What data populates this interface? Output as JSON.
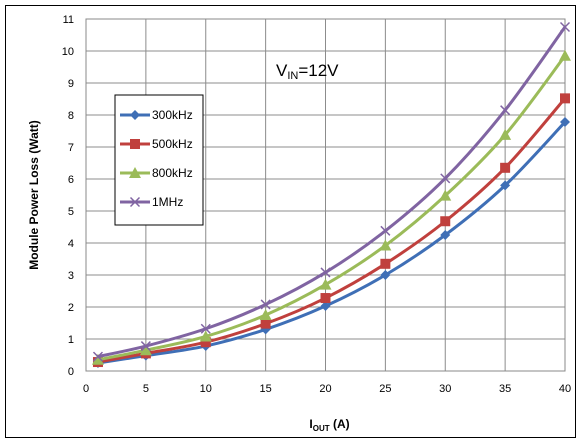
{
  "chart_data": {
    "type": "line",
    "xlabel_main": "I",
    "xlabel_sub": "OUT",
    "xlabel_unit": " (A)",
    "ylabel": "Module Power Loss (Watt)",
    "xlim": [
      0,
      40
    ],
    "ylim": [
      0,
      11
    ],
    "x_ticks": [
      0,
      5,
      10,
      15,
      20,
      25,
      30,
      35,
      40
    ],
    "y_ticks": [
      0,
      1,
      2,
      3,
      4,
      5,
      6,
      7,
      8,
      9,
      10,
      11
    ],
    "grid": true,
    "legend_placement": "left",
    "annotation": {
      "main": "V",
      "sub": "IN",
      "rest": "=12V"
    },
    "x": [
      1,
      5,
      10,
      15,
      20,
      25,
      30,
      35,
      40
    ],
    "series": [
      {
        "name": "300kHz",
        "color": "#3f6fb6",
        "marker": "diamond",
        "values": [
          0.25,
          0.48,
          0.78,
          1.3,
          2.03,
          3.0,
          4.25,
          5.8,
          7.78
        ]
      },
      {
        "name": "500kHz",
        "color": "#c0403d",
        "marker": "square",
        "values": [
          0.28,
          0.55,
          0.9,
          1.48,
          2.28,
          3.35,
          4.68,
          6.35,
          8.52
        ]
      },
      {
        "name": "800kHz",
        "color": "#9bbb59",
        "marker": "triangle",
        "values": [
          0.35,
          0.65,
          1.08,
          1.75,
          2.7,
          3.92,
          5.48,
          7.38,
          9.85
        ]
      },
      {
        "name": "1MHz",
        "color": "#8064a2",
        "marker": "x",
        "values": [
          0.45,
          0.78,
          1.32,
          2.08,
          3.08,
          4.38,
          6.02,
          8.15,
          10.75
        ]
      }
    ]
  }
}
